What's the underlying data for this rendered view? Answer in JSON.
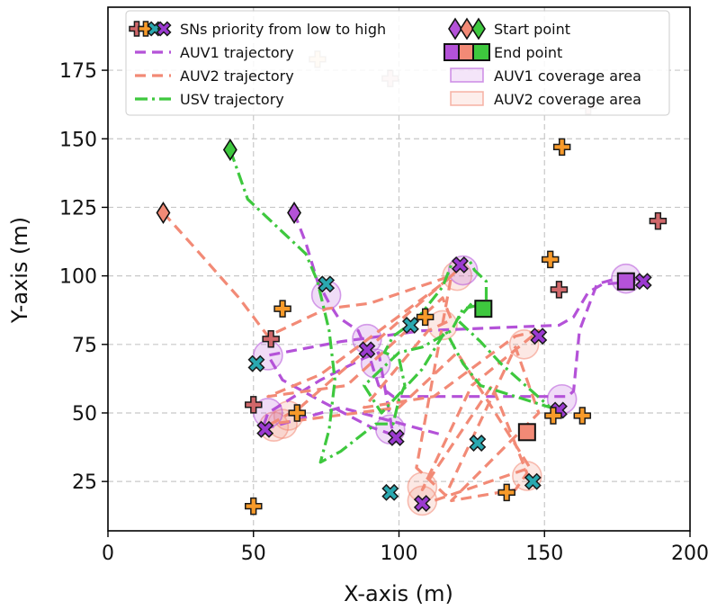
{
  "chart_data": {
    "type": "scatter",
    "title": "",
    "xlabel": "X-axis (m)",
    "ylabel": "Y-axis (m)",
    "xlim": [
      0,
      200
    ],
    "ylim": [
      7,
      198
    ],
    "xticks": [
      0,
      50,
      100,
      150,
      200
    ],
    "yticks": [
      25,
      50,
      75,
      100,
      125,
      150,
      175
    ],
    "grid": true,
    "legend_position": "top",
    "colors": {
      "auv1": "#b452d8",
      "auv2": "#f28a76",
      "usv": "#3ec83e",
      "priority": [
        "#d0676a",
        "#f79a2a",
        "#2aa8b0",
        "#9b3ad0"
      ]
    },
    "legend": [
      {
        "label": "SNs priority from low to high",
        "kind": "priority"
      },
      {
        "label": "AUV1 trajectory",
        "kind": "auv1-line"
      },
      {
        "label": "AUV2 trajectory",
        "kind": "auv2-line"
      },
      {
        "label": "USV trajectory",
        "kind": "usv-line"
      },
      {
        "label": "Start point",
        "kind": "start"
      },
      {
        "label": "End point",
        "kind": "end"
      },
      {
        "label": "AUV1 coverage area",
        "kind": "auv1-area"
      },
      {
        "label": "AUV2 coverage area",
        "kind": "auv2-area"
      }
    ],
    "series": [
      {
        "name": "AUV1 trajectory",
        "color": "#b452d8",
        "points": [
          [
            64,
            123
          ],
          [
            68,
            112
          ],
          [
            72,
            98
          ],
          [
            76,
            90
          ],
          [
            79,
            85
          ],
          [
            86,
            80
          ],
          [
            90,
            70
          ],
          [
            93,
            60
          ],
          [
            98,
            56
          ],
          [
            120,
            56
          ],
          [
            158,
            56
          ],
          [
            160,
            58
          ],
          [
            162,
            80
          ],
          [
            168,
            97
          ],
          [
            178,
            100
          ],
          [
            184,
            98
          ],
          [
            170,
            97
          ],
          [
            165,
            94
          ],
          [
            160,
            85
          ],
          [
            155,
            82
          ],
          [
            108,
            80
          ],
          [
            80,
            76
          ],
          [
            55,
            71
          ],
          [
            60,
            62
          ],
          [
            72,
            55
          ],
          [
            90,
            45
          ],
          [
            98,
            42
          ],
          [
            93,
            72
          ],
          [
            88,
            70
          ],
          [
            73,
            62
          ],
          [
            55,
            50
          ],
          [
            53,
            44
          ],
          [
            80,
            52
          ],
          [
            108,
            44
          ],
          [
            115,
            42
          ]
        ]
      },
      {
        "name": "AUV2 trajectory",
        "color": "#f28a76",
        "points": [
          [
            19,
            123
          ],
          [
            30,
            110
          ],
          [
            45,
            92
          ],
          [
            55,
            78
          ],
          [
            75,
            88
          ],
          [
            90,
            90
          ],
          [
            118,
            100
          ],
          [
            123,
            105
          ],
          [
            116,
            98
          ],
          [
            73,
            64
          ],
          [
            55,
            56
          ],
          [
            82,
            60
          ],
          [
            115,
            92
          ],
          [
            118,
            84
          ],
          [
            110,
            80
          ],
          [
            88,
            52
          ],
          [
            112,
            56
          ],
          [
            140,
            78
          ],
          [
            148,
            80
          ],
          [
            125,
            60
          ],
          [
            108,
            22
          ],
          [
            132,
            60
          ],
          [
            144,
            28
          ],
          [
            140,
            22
          ],
          [
            118,
            18
          ],
          [
            148,
            50
          ],
          [
            140,
            74
          ],
          [
            116,
            20
          ],
          [
            106,
            30
          ],
          [
            118,
            100
          ],
          [
            66,
            52
          ],
          [
            56,
            46
          ],
          [
            100,
            52
          ],
          [
            120,
            72
          ],
          [
            145,
            30
          ],
          [
            112,
            18
          ]
        ]
      },
      {
        "name": "USV trajectory",
        "color": "#3ec83e",
        "points": [
          [
            42,
            146
          ],
          [
            48,
            128
          ],
          [
            60,
            116
          ],
          [
            68,
            108
          ],
          [
            72,
            98
          ],
          [
            76,
            80
          ],
          [
            78,
            62
          ],
          [
            76,
            44
          ],
          [
            73,
            32
          ],
          [
            80,
            36
          ],
          [
            92,
            46
          ],
          [
            98,
            46
          ],
          [
            100,
            55
          ],
          [
            102,
            60
          ],
          [
            100,
            70
          ],
          [
            95,
            72
          ],
          [
            98,
            78
          ],
          [
            106,
            84
          ],
          [
            115,
            96
          ],
          [
            118,
            104
          ],
          [
            124,
            106
          ],
          [
            126,
            102
          ],
          [
            130,
            98
          ],
          [
            130,
            90
          ],
          [
            122,
            88
          ],
          [
            118,
            80
          ],
          [
            108,
            74
          ],
          [
            100,
            72
          ],
          [
            88,
            60
          ],
          [
            94,
            50
          ],
          [
            108,
            66
          ],
          [
            116,
            80
          ],
          [
            122,
            68
          ],
          [
            128,
            60
          ],
          [
            140,
            56
          ],
          [
            152,
            52
          ],
          [
            135,
            68
          ],
          [
            128,
            76
          ],
          [
            120,
            84
          ],
          [
            125,
            90
          ],
          [
            129,
            88
          ]
        ]
      }
    ],
    "coverage_areas": {
      "auv1": [
        [
          75,
          93
        ],
        [
          89,
          77
        ],
        [
          55,
          71
        ],
        [
          92,
          68
        ],
        [
          55,
          50
        ],
        [
          97,
          44
        ],
        [
          156,
          55
        ],
        [
          178,
          99
        ],
        [
          122,
          102
        ]
      ],
      "auv2": [
        [
          120,
          100
        ],
        [
          62,
          49
        ],
        [
          60,
          46
        ],
        [
          57,
          45
        ],
        [
          108,
          23
        ],
        [
          108,
          18
        ],
        [
          144,
          27
        ],
        [
          143,
          75
        ],
        [
          115,
          82
        ]
      ]
    },
    "start_points": [
      {
        "name": "AUV1 start",
        "x": 64,
        "y": 123,
        "color": "#b452d8"
      },
      {
        "name": "AUV2 start",
        "x": 19,
        "y": 123,
        "color": "#f28a76"
      },
      {
        "name": "USV start",
        "x": 42,
        "y": 146,
        "color": "#3ec83e"
      }
    ],
    "end_points": [
      {
        "name": "AUV1 end",
        "x": 178,
        "y": 98,
        "color": "#b452d8"
      },
      {
        "name": "AUV2 end",
        "x": 144,
        "y": 43,
        "color": "#f28a76"
      },
      {
        "name": "USV end",
        "x": 129,
        "y": 88,
        "color": "#3ec83e"
      }
    ],
    "sensor_nodes": [
      {
        "x": 72,
        "y": 179,
        "priority": 1,
        "faded": true
      },
      {
        "x": 97,
        "y": 172,
        "priority": 0,
        "faded": true
      },
      {
        "x": 165,
        "y": 162,
        "priority": 0,
        "faded": true
      },
      {
        "x": 156,
        "y": 147,
        "priority": 1
      },
      {
        "x": 189,
        "y": 120,
        "priority": 0
      },
      {
        "x": 152,
        "y": 106,
        "priority": 1
      },
      {
        "x": 155,
        "y": 95,
        "priority": 0
      },
      {
        "x": 75,
        "y": 97,
        "priority": 2
      },
      {
        "x": 60,
        "y": 88,
        "priority": 1
      },
      {
        "x": 104,
        "y": 82,
        "priority": 2
      },
      {
        "x": 109,
        "y": 85,
        "priority": 1
      },
      {
        "x": 56,
        "y": 77,
        "priority": 0
      },
      {
        "x": 89,
        "y": 73,
        "priority": 3
      },
      {
        "x": 51,
        "y": 68,
        "priority": 2
      },
      {
        "x": 148,
        "y": 78,
        "priority": 3
      },
      {
        "x": 121,
        "y": 104,
        "priority": 3
      },
      {
        "x": 184,
        "y": 98,
        "priority": 3
      },
      {
        "x": 50,
        "y": 53,
        "priority": 0
      },
      {
        "x": 65,
        "y": 50,
        "priority": 1
      },
      {
        "x": 54,
        "y": 44,
        "priority": 3
      },
      {
        "x": 99,
        "y": 41,
        "priority": 3
      },
      {
        "x": 155,
        "y": 51,
        "priority": 3
      },
      {
        "x": 153,
        "y": 49,
        "priority": 1
      },
      {
        "x": 163,
        "y": 49,
        "priority": 1
      },
      {
        "x": 127,
        "y": 39,
        "priority": 2
      },
      {
        "x": 146,
        "y": 25,
        "priority": 2
      },
      {
        "x": 97,
        "y": 21,
        "priority": 2
      },
      {
        "x": 137,
        "y": 21,
        "priority": 1
      },
      {
        "x": 108,
        "y": 17,
        "priority": 3
      },
      {
        "x": 50,
        "y": 16,
        "priority": 1
      }
    ]
  }
}
